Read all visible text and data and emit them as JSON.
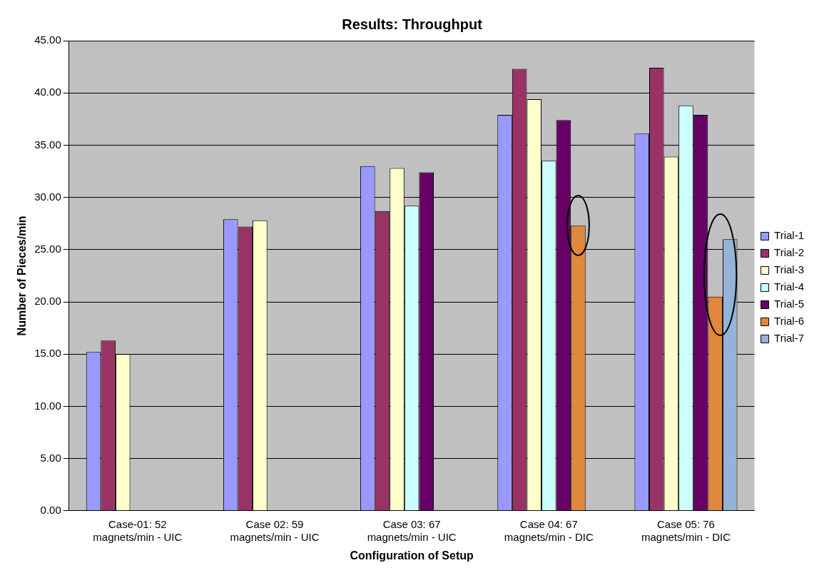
{
  "chart_data": {
    "type": "bar",
    "title": "Results: Throughput",
    "xlabel": "Configuration of Setup",
    "ylabel": "Number of Pieces/min",
    "categories": [
      "Case-01: 52 magnets/min - UIC",
      "Case 02: 59 magnets/min - UIC",
      "Case 03: 67 magnets/min - UIC",
      "Case 04: 67 magnets/min - DIC",
      "Case 05: 76 magnets/min - DIC"
    ],
    "series": [
      {
        "name": "Trial-1",
        "color": "#9999ff",
        "values": [
          15.2,
          27.9,
          33.0,
          37.9,
          36.1
        ]
      },
      {
        "name": "Trial-2",
        "color": "#993366",
        "values": [
          16.3,
          27.2,
          28.7,
          42.3,
          42.4
        ]
      },
      {
        "name": "Trial-3",
        "color": "#ffffcc",
        "values": [
          15.0,
          27.8,
          32.8,
          39.4,
          33.9
        ]
      },
      {
        "name": "Trial-4",
        "color": "#ccffff",
        "values": [
          null,
          null,
          29.2,
          33.5,
          38.8
        ]
      },
      {
        "name": "Trial-5",
        "color": "#660066",
        "values": [
          null,
          null,
          32.4,
          37.4,
          37.9
        ]
      },
      {
        "name": "Trial-6",
        "color": "#e0883c",
        "values": [
          null,
          null,
          null,
          27.3,
          20.5
        ]
      },
      {
        "name": "Trial-7",
        "color": "#95b3d7",
        "values": [
          null,
          null,
          null,
          null,
          26.0
        ]
      }
    ],
    "ylim": [
      0,
      45
    ],
    "yticks": [
      {
        "value": 0,
        "label": "0.00"
      },
      {
        "value": 5,
        "label": "5.00"
      },
      {
        "value": 10,
        "label": "10.00"
      },
      {
        "value": 15,
        "label": "15.00"
      },
      {
        "value": 20,
        "label": "20.00"
      },
      {
        "value": 25,
        "label": "25.00"
      },
      {
        "value": 30,
        "label": "30.00"
      },
      {
        "value": 35,
        "label": "35.00"
      },
      {
        "value": 40,
        "label": "40.00"
      },
      {
        "value": 45,
        "label": "45.00"
      }
    ],
    "grid": "y",
    "legend": "right"
  }
}
